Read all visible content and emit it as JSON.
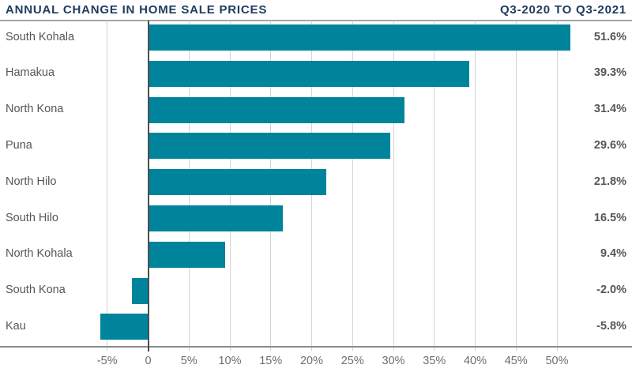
{
  "header": {
    "title": "ANNUAL CHANGE IN HOME SALE PRICES",
    "subtitle": "Q3-2020 TO Q3-2021"
  },
  "chart_data": {
    "type": "bar",
    "orientation": "horizontal",
    "title": "ANNUAL CHANGE IN HOME SALE PRICES",
    "subtitle": "Q3-2020 TO Q3-2021",
    "categories": [
      "South Kohala",
      "Hamakua",
      "North Kona",
      "Puna",
      "North Hilo",
      "South Hilo",
      "North Kohala",
      "South Kona",
      "Kau"
    ],
    "values": [
      51.6,
      39.3,
      31.4,
      29.6,
      21.8,
      16.5,
      9.4,
      -2.0,
      -5.8
    ],
    "value_labels": [
      "51.6%",
      "39.3%",
      "31.4%",
      "29.6%",
      "21.8%",
      "16.5%",
      "9.4%",
      "-2.0%",
      "-5.8%"
    ],
    "x_ticks": [
      -5,
      0,
      5,
      10,
      15,
      20,
      25,
      30,
      35,
      40,
      45,
      50
    ],
    "x_tick_labels": [
      "-5%",
      "0",
      "5%",
      "10%",
      "15%",
      "20%",
      "25%",
      "30%",
      "35%",
      "40%",
      "45%",
      "50%"
    ],
    "xlim": [
      -8,
      57
    ],
    "grid": true,
    "legend": false,
    "xlabel": "",
    "ylabel": ""
  },
  "colors": {
    "bar": "#00849b",
    "title": "#1f3a5f",
    "category_label": "#55565a",
    "value_label": "#55565a",
    "tick_label": "#6d6e71",
    "gridline": "#d2d4d5",
    "zero_line": "#4d4e50",
    "axis_line": "#8a8c8e",
    "header_rule": "#a4a6a9",
    "background": "#ffffff"
  }
}
